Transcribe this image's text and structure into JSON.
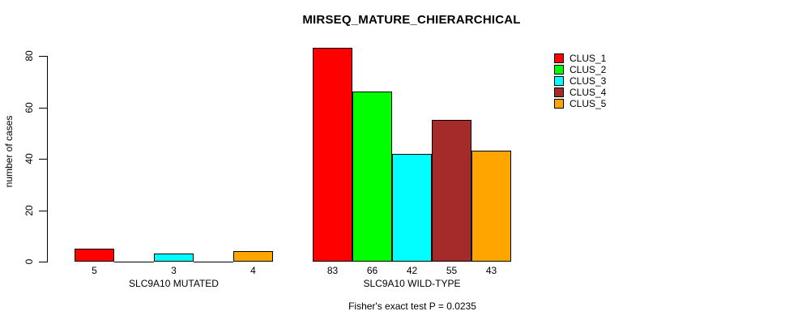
{
  "title": "MIRSEQ_MATURE_CHIERARCHICAL",
  "chart_data": {
    "type": "bar",
    "title": "MIRSEQ_MATURE_CHIERARCHICAL",
    "xlabel": "",
    "ylabel": "number of cases",
    "ylim": [
      0,
      80
    ],
    "y_ticks": [
      0,
      20,
      40,
      60,
      80
    ],
    "grid": false,
    "legend_position": "right",
    "categories": [
      "SLC9A10 MUTATED",
      "SLC9A10 WILD-TYPE"
    ],
    "series": [
      {
        "name": "CLUS_1",
        "color": "#FF0000",
        "values": [
          5,
          83
        ]
      },
      {
        "name": "CLUS_2",
        "color": "#00FF00",
        "values": [
          0,
          66
        ]
      },
      {
        "name": "CLUS_3",
        "color": "#00FFFF",
        "values": [
          3,
          42
        ]
      },
      {
        "name": "CLUS_4",
        "color": "#A52A2A",
        "values": [
          0,
          55
        ]
      },
      {
        "name": "CLUS_5",
        "color": "#FFA500",
        "values": [
          4,
          43
        ]
      }
    ],
    "bar_value_labels": {
      "SLC9A10 MUTATED": [
        5,
        3,
        4
      ],
      "SLC9A10 WILD-TYPE": [
        83,
        66,
        42,
        55,
        43
      ]
    },
    "annotation": "Fisher's exact test P = 0.0235"
  }
}
